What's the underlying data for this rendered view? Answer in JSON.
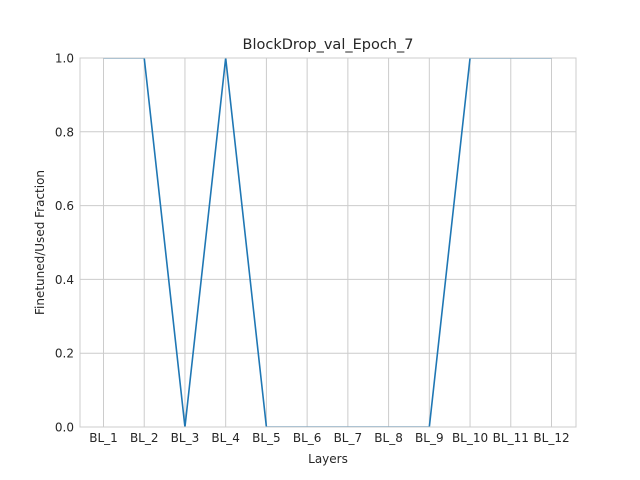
{
  "chart_data": {
    "type": "line",
    "title": "BlockDrop_val_Epoch_7",
    "xlabel": "Layers",
    "ylabel": "Finetuned/Used Fraction",
    "categories": [
      "BL_1",
      "BL_2",
      "BL_3",
      "BL_4",
      "BL_5",
      "BL_6",
      "BL_7",
      "BL_8",
      "BL_9",
      "BL_10",
      "BL_11",
      "BL_12"
    ],
    "series": [
      {
        "values": [
          1,
          1,
          0,
          1,
          0,
          0,
          0,
          0,
          0,
          1,
          1,
          1
        ]
      }
    ],
    "ylim": [
      0,
      1.0
    ],
    "yticks": [
      "0.0",
      "0.2",
      "0.4",
      "0.6",
      "0.8",
      "1.0"
    ],
    "grid": true,
    "line_color": "#1f77b4"
  }
}
